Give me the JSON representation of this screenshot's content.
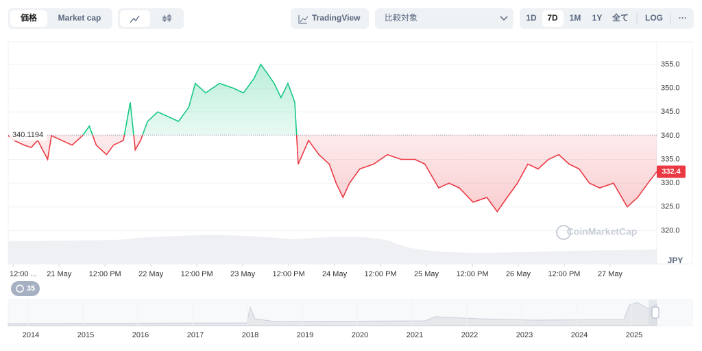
{
  "toolbar": {
    "tabs": [
      "価格",
      "Market cap"
    ],
    "tradingview": "TradingView",
    "compare": "比較対象",
    "ranges": [
      "1D",
      "7D",
      "1M",
      "1Y",
      "全て"
    ],
    "log": "LOG",
    "more": "···"
  },
  "chart_data": {
    "type": "line",
    "currency": "JPY",
    "watermark": "CoinMarketCap",
    "x": [
      -13.3,
      -11.8,
      -9.1,
      -7.3,
      -5.6,
      -3.0,
      -2.0,
      0.7,
      3.4,
      6.1,
      7.9,
      9.7,
      12.4,
      14.2,
      16.8,
      18.6,
      19.9,
      21.3,
      23.1,
      25.8,
      28.5,
      31.2,
      33.9,
      35.6,
      38.3,
      41.9,
      45.5,
      48.2,
      50.9,
      52.7,
      54.5,
      56.2,
      58.0,
      59.8,
      61.6,
      62.5,
      65.2,
      67.9,
      70.6,
      72.4,
      74.2,
      75.9,
      78.6,
      82.2,
      85.8,
      89.4,
      93.0,
      95.6,
      99.2,
      101.9,
      104.6,
      108.2,
      111.8,
      114.5,
      117.1,
      119.8,
      122.5,
      125.2,
      127.9,
      130.6,
      133.3,
      135.9,
      138.6,
      141.3,
      144.9,
      148.5,
      151.2,
      153.9,
      156.2
    ],
    "series": [
      {
        "name": "価格",
        "values": [
          340,
          339,
          338,
          337.5,
          339,
          335,
          340,
          339,
          338,
          340,
          342,
          338,
          336,
          338,
          339,
          347,
          337,
          339,
          343,
          345,
          344,
          343,
          346,
          351,
          349,
          351,
          350,
          349,
          352,
          355,
          353,
          351,
          348,
          351,
          347,
          334,
          339,
          336,
          334,
          330,
          327,
          330,
          333,
          334,
          336,
          335,
          335,
          334,
          329,
          330,
          329,
          326,
          327,
          324,
          327,
          330,
          334,
          333,
          335,
          336,
          334,
          333,
          330,
          329,
          330,
          325,
          327,
          330,
          332.4
        ]
      }
    ],
    "baseline": 340.1194,
    "last_price": 332.4,
    "xlim": [
      -13.3,
      156.2
    ],
    "xticks": [
      {
        "value": -12,
        "label": "12:00 ..."
      },
      {
        "value": 0,
        "label": "21 May"
      },
      {
        "value": 12,
        "label": "12:00 PM"
      },
      {
        "value": 24,
        "label": "22 May"
      },
      {
        "value": 36,
        "label": "12:00 PM"
      },
      {
        "value": 48,
        "label": "23 May"
      },
      {
        "value": 60,
        "label": "12:00 PM"
      },
      {
        "value": 72,
        "label": "24 May"
      },
      {
        "value": 84,
        "label": "12:00 PM"
      },
      {
        "value": 96,
        "label": "25 May"
      },
      {
        "value": 108,
        "label": "12:00 PM"
      },
      {
        "value": 120,
        "label": "26 May"
      },
      {
        "value": 132,
        "label": "12:00 PM"
      },
      {
        "value": 144,
        "label": "27 May"
      }
    ],
    "ylim": [
      313,
      359.6
    ],
    "yticks": [
      {
        "value": 320,
        "label": "320.0"
      },
      {
        "value": 325,
        "label": "325.0"
      },
      {
        "value": 330,
        "label": "330.0"
      },
      {
        "value": 335,
        "label": "335.0"
      },
      {
        "value": 340,
        "label": "340.0"
      },
      {
        "value": 345,
        "label": "345.0"
      },
      {
        "value": 350,
        "label": "350.0"
      },
      {
        "value": 355,
        "label": "355.0"
      }
    ],
    "grid": true,
    "up_color": "#16c784",
    "down_color": "#ea3943"
  },
  "navigator": {
    "badge": "35",
    "years": [
      "2014",
      "2015",
      "2016",
      "2017",
      "2018",
      "2019",
      "2020",
      "2021",
      "2022",
      "2023",
      "2024",
      "2025"
    ]
  }
}
